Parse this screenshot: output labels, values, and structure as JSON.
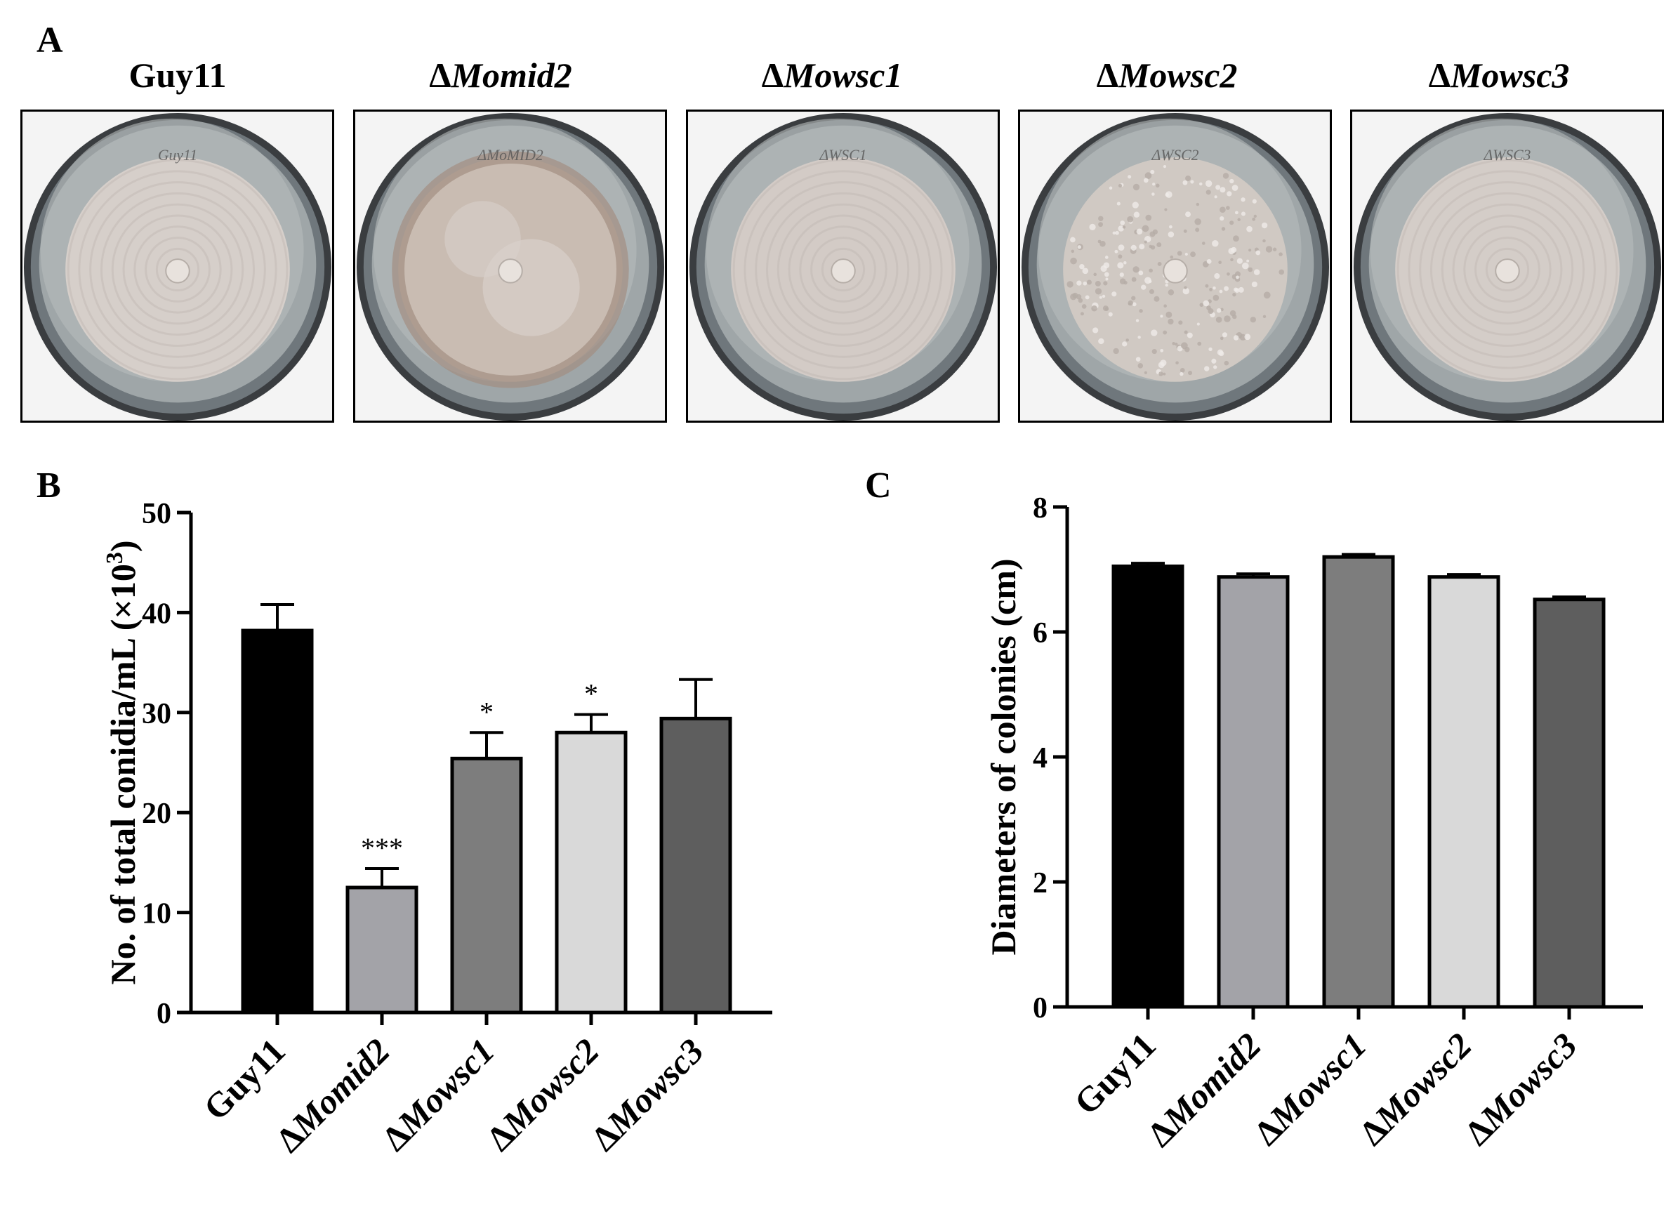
{
  "panels": {
    "a_label": "A",
    "b_label": "B",
    "c_label": "C"
  },
  "plates": [
    {
      "prefix": "",
      "name": "Guy11",
      "handwriting": "Guy11",
      "inner_color": "#d6cfca",
      "texture": "rings"
    },
    {
      "prefix": "Δ",
      "name": "Momid2",
      "handwriting": "ΔMoMID2",
      "inner_color": "#c9bcb2",
      "texture": "patchy"
    },
    {
      "prefix": "Δ",
      "name": "Mowsc1",
      "handwriting": "ΔWSC1",
      "inner_color": "#d3cbc6",
      "texture": "rings"
    },
    {
      "prefix": "Δ",
      "name": "Mowsc2",
      "handwriting": "ΔWSC2",
      "inner_color": "#d0c9c3",
      "texture": "speckle"
    },
    {
      "prefix": "Δ",
      "name": "Mowsc3",
      "handwriting": "ΔWSC3",
      "inner_color": "#d4cdc8",
      "texture": "rings"
    }
  ],
  "chart_data": [
    {
      "id": "B",
      "type": "bar",
      "title": "",
      "xlabel": "",
      "ylabel": "No. of total conidia/mL (×10",
      "ylabel_superscript": "3",
      "ylabel_close": ")",
      "ylim": [
        0,
        50
      ],
      "yticks": [
        0,
        10,
        20,
        30,
        40,
        50
      ],
      "categories": [
        "Guy11",
        "ΔMomid2",
        "ΔMowsc1",
        "ΔMowsc2",
        "ΔMowsc3"
      ],
      "category_italic_part": [
        false,
        true,
        true,
        true,
        true
      ],
      "values": [
        38.2,
        12.5,
        25.4,
        28.0,
        29.4
      ],
      "errors": [
        2.6,
        1.9,
        2.6,
        1.8,
        3.9
      ],
      "significance": [
        "",
        "***",
        "*",
        "*",
        ""
      ],
      "colors": [
        "#000000",
        "#a3a3a8",
        "#7d7d7d",
        "#d9d9d9",
        "#5e5e5e"
      ]
    },
    {
      "id": "C",
      "type": "bar",
      "title": "",
      "xlabel": "",
      "ylabel": "Diameters of colonies (cm)",
      "ylim": [
        0,
        8
      ],
      "yticks": [
        0,
        2,
        4,
        6,
        8
      ],
      "categories": [
        "Guy11",
        "ΔMomid2",
        "ΔMowsc1",
        "ΔMowsc2",
        "ΔMowsc3"
      ],
      "category_italic_part": [
        false,
        true,
        true,
        true,
        true
      ],
      "values": [
        7.05,
        6.88,
        7.2,
        6.88,
        6.52
      ],
      "errors": [
        0.05,
        0.05,
        0.04,
        0.04,
        0.04
      ],
      "significance": [
        "",
        "",
        "",
        "",
        ""
      ],
      "colors": [
        "#000000",
        "#a3a3a8",
        "#7d7d7d",
        "#d9d9d9",
        "#5e5e5e"
      ]
    }
  ]
}
